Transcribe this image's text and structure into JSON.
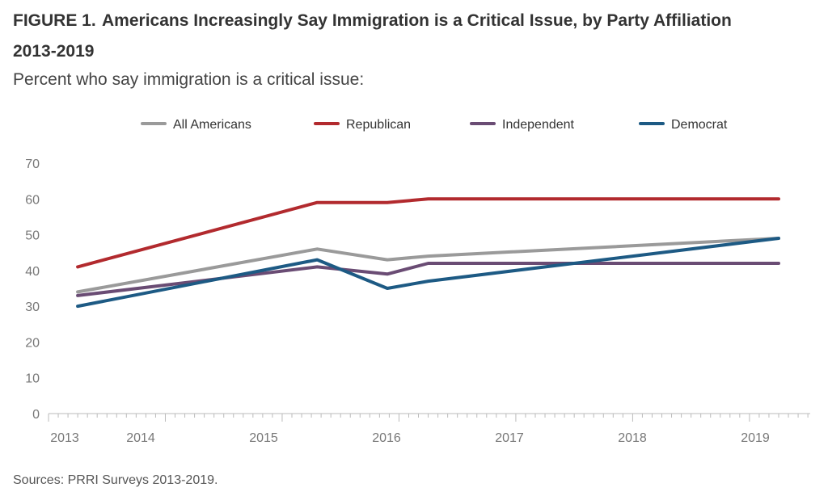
{
  "figure": {
    "label": "FIGURE 1.",
    "title": "Americans Increasingly Say Immigration is a Critical Issue, by Party Affiliation",
    "title_line2": "2013-2019",
    "subtitle": "Percent who say immigration is a critical issue:",
    "source": "Sources: PRRI Surveys 2013-2019."
  },
  "chart_data": {
    "type": "line",
    "title": "Americans Increasingly Say Immigration is a Critical Issue, by Party Affiliation 2013-2019",
    "xlabel": "",
    "ylabel": "",
    "ylim": [
      0,
      70
    ],
    "yticks": [
      0,
      10,
      20,
      30,
      40,
      50,
      60,
      70
    ],
    "xlim": [
      2013.0,
      2019.52
    ],
    "xticks": [
      "2013",
      "2014",
      "2015",
      "2016",
      "2017",
      "2018",
      "2019"
    ],
    "grid": false,
    "legend": "top",
    "series": [
      {
        "name": "All Americans",
        "color": "#9a9a9a",
        "x": [
          2013.25,
          2015.3,
          2015.9,
          2016.25,
          2019.25
        ],
        "values": [
          34,
          46,
          43,
          44,
          49
        ]
      },
      {
        "name": "Republican",
        "color": "#b22a2e",
        "x": [
          2013.25,
          2015.3,
          2015.9,
          2016.25,
          2019.25
        ],
        "values": [
          41,
          59,
          59,
          60,
          60
        ]
      },
      {
        "name": "Independent",
        "color": "#6a4c74",
        "x": [
          2013.25,
          2015.3,
          2015.9,
          2016.25,
          2019.25
        ],
        "values": [
          33,
          41,
          39,
          42,
          42
        ]
      },
      {
        "name": "Democrat",
        "color": "#1d5a84",
        "x": [
          2013.25,
          2015.3,
          2015.9,
          2016.25,
          2019.25
        ],
        "values": [
          30,
          43,
          35,
          37,
          49
        ]
      }
    ]
  }
}
